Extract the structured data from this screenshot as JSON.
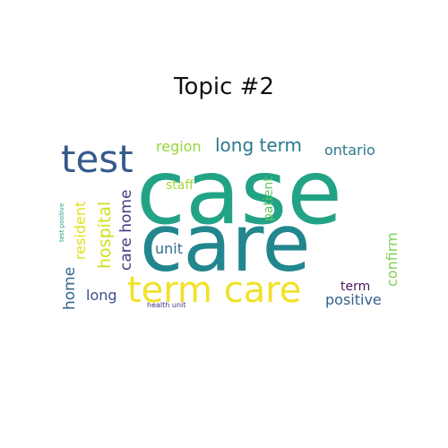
{
  "title": "Topic #2",
  "words": {
    "case": {
      "text": "case",
      "color": "#22a386"
    },
    "care": {
      "text": "care",
      "color": "#21868e"
    },
    "test": {
      "text": "test",
      "color": "#375a8c"
    },
    "term_care": {
      "text": "term care",
      "color": "#f1e228"
    },
    "long_term": {
      "text": "long term",
      "color": "#2a788e"
    },
    "region": {
      "text": "region",
      "color": "#96d63c"
    },
    "ontario": {
      "text": "ontario",
      "color": "#2a7a8e"
    },
    "staff": {
      "text": "staff",
      "color": "#a2da37"
    },
    "unit": {
      "text": "unit",
      "color": "#2d6f8e"
    },
    "long": {
      "text": "long",
      "color": "#3d4f8a"
    },
    "term": {
      "text": "term",
      "color": "#46175d"
    },
    "positive": {
      "text": "positive",
      "color": "#33628d"
    },
    "health_unit": {
      "text": "health unit",
      "color": "#46337e"
    },
    "hospital": {
      "text": "hospital",
      "color": "#cfe11c"
    },
    "resident": {
      "text": "resident",
      "color": "#e1e11a"
    },
    "care_home": {
      "text": "care home",
      "color": "#433e85"
    },
    "home": {
      "text": "home",
      "color": "#31688e"
    },
    "patient": {
      "text": "patient",
      "color": "#5ec962"
    },
    "confirm": {
      "text": "confirm",
      "color": "#7ad151"
    },
    "test_positive": {
      "text": "test positive",
      "color": "#1f9e89"
    }
  }
}
